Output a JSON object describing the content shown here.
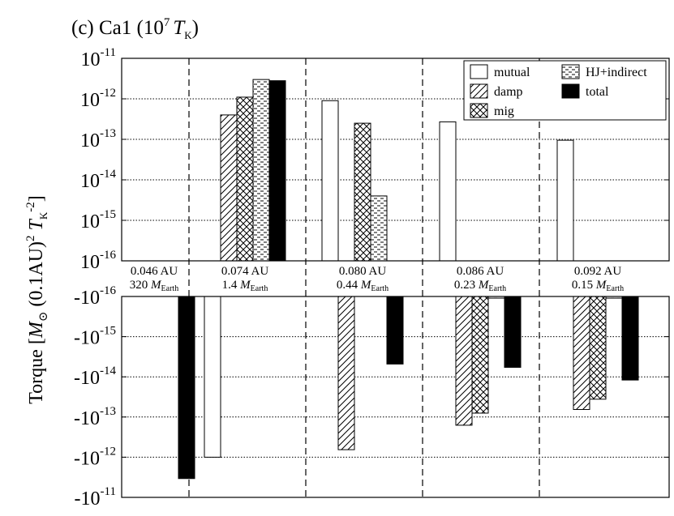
{
  "chart_data": {
    "type": "bar",
    "title": "(c) Ca1 (10",
    "title_sup": "7",
    "title_symbol": "T",
    "title_sub": "K",
    "title_tail": ")",
    "ylabel": {
      "text": "Torque [",
      "m_symbol": "M",
      "sun_glyph": "⊙",
      "mid": " (0.1AU)",
      "mid_sup": "2",
      "space_t": " T",
      "t_sub": "K",
      "t_sup": "-2",
      "end": "]"
    },
    "y_scale": "log",
    "upper_panel": {
      "ylim_exponent": [
        -16,
        -11
      ],
      "tick_labels": [
        "10-11",
        "10-12",
        "10-13",
        "10-14",
        "10-15",
        "10-16"
      ],
      "tick_label_parts": [
        {
          "base": "10",
          "exp": "-11"
        },
        {
          "base": "10",
          "exp": "-12"
        },
        {
          "base": "10",
          "exp": "-13"
        },
        {
          "base": "10",
          "exp": "-14"
        },
        {
          "base": "10",
          "exp": "-15"
        },
        {
          "base": "10",
          "exp": "-16"
        }
      ]
    },
    "lower_panel": {
      "ylim_exponent": [
        -16,
        -11
      ],
      "sign": "-",
      "tick_labels": [
        "-10-16",
        "-10-15",
        "-10-14",
        "-10-13",
        "-10-12",
        "-10-11"
      ],
      "tick_label_parts": [
        {
          "base": "-10",
          "exp": "-16"
        },
        {
          "base": "-10",
          "exp": "-15"
        },
        {
          "base": "-10",
          "exp": "-14"
        },
        {
          "base": "-10",
          "exp": "-13"
        },
        {
          "base": "-10",
          "exp": "-12"
        },
        {
          "base": "-10",
          "exp": "-11"
        }
      ]
    },
    "grid": true,
    "categories": [
      {
        "distance": "0.046 AU",
        "mass_value": "320",
        "mass_symbol": "M",
        "mass_sub": "Earth"
      },
      {
        "distance": "0.074 AU",
        "mass_value": "1.4",
        "mass_symbol": "M",
        "mass_sub": "Earth"
      },
      {
        "distance": "0.080 AU",
        "mass_value": "0.44",
        "mass_symbol": "M",
        "mass_sub": "Earth"
      },
      {
        "distance": "0.086 AU",
        "mass_value": "0.23",
        "mass_symbol": "M",
        "mass_sub": "Earth"
      },
      {
        "distance": "0.092 AU",
        "mass_value": "0.15",
        "mass_symbol": "M",
        "mass_sub": "Earth"
      }
    ],
    "series": [
      {
        "name": "mutual",
        "pattern": "none",
        "values": [
          null,
          -1e-12,
          9e-13,
          2.7e-13,
          9.5e-14
        ]
      },
      {
        "name": "damp",
        "pattern": "hatch",
        "values": [
          null,
          4e-13,
          -6.5e-13,
          -1.6e-13,
          -6.5e-14
        ]
      },
      {
        "name": "mig",
        "pattern": "crosshatch",
        "values": [
          null,
          1.1e-12,
          2.5e-13,
          -8e-14,
          -3.6e-14
        ]
      },
      {
        "name": "HJ+indirect",
        "pattern": "dashes",
        "values": [
          null,
          3e-12,
          4e-15,
          -1.1e-16,
          -1.1e-16
        ]
      },
      {
        "name": "total",
        "pattern": "solid",
        "values": [
          -3.4e-12,
          2.8e-12,
          -4.8e-15,
          -5.8e-15,
          -1.2e-14
        ]
      }
    ],
    "legend_placement": "top-right"
  }
}
